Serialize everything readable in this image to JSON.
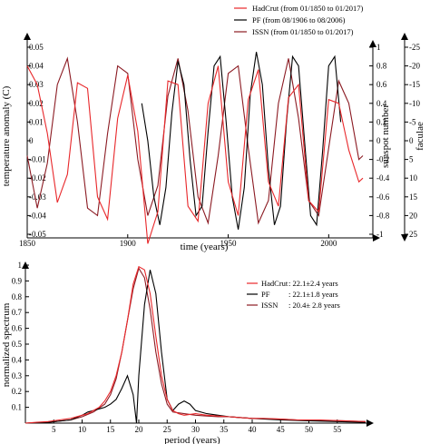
{
  "chart_data": [
    {
      "type": "line",
      "title": "",
      "xlabel": "time (years)",
      "ylabel": "temperature anomaly (C)",
      "ylabel_right1": "sunspot number",
      "ylabel_right2": "faculae",
      "xlim": [
        1850,
        2017
      ],
      "xticks": [
        1850,
        1900,
        1950,
        2000
      ],
      "ylim_left": [
        -0.05,
        0.05
      ],
      "yticks_left": [
        "0.05",
        "0.04",
        "0.03",
        "0.02",
        "0.01",
        "0",
        "-0.01",
        "-0.02",
        "-0.03",
        "-0.04",
        "-0.05"
      ],
      "ylim_right1": [
        -1,
        1
      ],
      "yticks_right1": [
        "1",
        "0.8",
        "0.6",
        "0.4",
        "0.2",
        "0",
        "-0.2",
        "-0.4",
        "-0.6",
        "-0.8",
        "-1"
      ],
      "ylim_right2": [
        -25,
        25
      ],
      "yticks_right2": [
        "-25",
        "-20",
        "-15",
        "-10",
        "-5",
        "0",
        "5",
        "10",
        "15",
        "20",
        "25"
      ],
      "legend_position": "top-right",
      "series": [
        {
          "name": "HadCrut (from 01/1850 to 01/2017)",
          "color": "#e8272a",
          "x": [
            1850,
            1855,
            1860,
            1865,
            1870,
            1875,
            1880,
            1885,
            1890,
            1895,
            1900,
            1905,
            1910,
            1915,
            1920,
            1925,
            1930,
            1935,
            1940,
            1945,
            1950,
            1955,
            1960,
            1965,
            1970,
            1975,
            1980,
            1985,
            1990,
            1995,
            2000,
            2005,
            2010,
            2015,
            2017
          ],
          "y": [
            0.04,
            0.03,
            0.004,
            -0.033,
            -0.018,
            0.031,
            0.028,
            -0.03,
            -0.042,
            0.012,
            0.035,
            0.005,
            -0.055,
            -0.038,
            0.032,
            0.03,
            -0.035,
            -0.043,
            0.02,
            0.04,
            -0.022,
            -0.04,
            0.022,
            0.038,
            -0.022,
            -0.035,
            0.023,
            0.03,
            -0.032,
            -0.038,
            0.022,
            0.02,
            -0.005,
            -0.022,
            -0.02
          ]
        },
        {
          "name": "PF (from 08/1906 to 08/2006)",
          "color": "#000000",
          "x": [
            1907,
            1910,
            1913,
            1916,
            1919,
            1922,
            1925,
            1928,
            1931,
            1934,
            1937,
            1940,
            1943,
            1946,
            1949,
            1952,
            1955,
            1958,
            1961,
            1964,
            1967,
            1970,
            1973,
            1976,
            1979,
            1982,
            1985,
            1988,
            1991,
            1994,
            1997,
            2000,
            2003,
            2006
          ],
          "y": [
            0.4,
            0.0,
            -0.6,
            -0.9,
            -0.5,
            0.3,
            0.85,
            0.6,
            -0.2,
            -0.8,
            -0.7,
            0.1,
            0.8,
            0.9,
            0.2,
            -0.6,
            -0.95,
            -0.5,
            0.5,
            0.95,
            0.6,
            -0.3,
            -0.9,
            -0.7,
            0.2,
            0.9,
            0.8,
            0.0,
            -0.8,
            -0.9,
            -0.1,
            0.8,
            0.9,
            0.2
          ]
        },
        {
          "name": "ISSN (from 01/1850 to 01/2017)",
          "color": "#8b1a22",
          "x": [
            1850,
            1855,
            1860,
            1865,
            1870,
            1875,
            1880,
            1885,
            1890,
            1895,
            1900,
            1905,
            1910,
            1915,
            1920,
            1925,
            1930,
            1935,
            1940,
            1945,
            1950,
            1955,
            1960,
            1965,
            1970,
            1975,
            1980,
            1985,
            1990,
            1995,
            2000,
            2005,
            2010,
            2015,
            2017
          ],
          "y": [
            4,
            18,
            6,
            -15,
            -22,
            -5,
            18,
            20,
            -2,
            -20,
            -18,
            5,
            20,
            12,
            -12,
            -22,
            -8,
            15,
            22,
            4,
            -18,
            -20,
            2,
            22,
            16,
            -10,
            -22,
            -6,
            16,
            20,
            2,
            -16,
            -10,
            5,
            4
          ]
        }
      ]
    },
    {
      "type": "line",
      "title": "",
      "xlabel": "period (years)",
      "ylabel": "normalized spectrum",
      "xlim": [
        0,
        60
      ],
      "xticks": [
        "5",
        "10",
        "15",
        "20",
        "25",
        "30",
        "35",
        "40",
        "45",
        "50",
        "55"
      ],
      "ylim": [
        0,
        1
      ],
      "yticks": [
        "0.1",
        "0.2",
        "0.3",
        "0.4",
        "0.5",
        "0.6",
        "0.7",
        "0.8",
        "0.9",
        "1"
      ],
      "legend_position": "center-right",
      "series": [
        {
          "name": "HadCrut",
          "annotation": ": 22.1±2.4 years",
          "color": "#e8272a",
          "x": [
            0,
            2,
            4,
            6,
            8,
            10,
            11,
            12,
            13,
            14,
            15,
            16,
            17,
            18,
            19,
            20,
            21,
            22,
            23,
            24,
            25,
            26,
            27,
            28,
            30,
            32,
            34,
            36,
            38,
            40,
            42,
            45,
            48,
            52,
            56,
            60
          ],
          "y": [
            0,
            0.005,
            0.01,
            0.02,
            0.03,
            0.05,
            0.06,
            0.08,
            0.1,
            0.14,
            0.2,
            0.3,
            0.45,
            0.65,
            0.88,
            0.99,
            0.97,
            0.82,
            0.55,
            0.3,
            0.15,
            0.08,
            0.06,
            0.05,
            0.06,
            0.05,
            0.045,
            0.04,
            0.035,
            0.03,
            0.03,
            0.025,
            0.02,
            0.02,
            0.015,
            0.01
          ]
        },
        {
          "name": "PF",
          "annotation": ": 22.1±1.8 years",
          "color": "#000000",
          "x": [
            0,
            4,
            8,
            10,
            11,
            12,
            13,
            14,
            15,
            16,
            17,
            18,
            19,
            19.6,
            20,
            21,
            22,
            23,
            24,
            25,
            26,
            27,
            28,
            29,
            30,
            32,
            34,
            36,
            38,
            40,
            45,
            50,
            55,
            60
          ],
          "y": [
            0,
            0.005,
            0.02,
            0.05,
            0.07,
            0.08,
            0.09,
            0.1,
            0.12,
            0.15,
            0.22,
            0.3,
            0.18,
            0.0,
            0.3,
            0.75,
            0.97,
            0.82,
            0.45,
            0.15,
            0.08,
            0.12,
            0.14,
            0.12,
            0.08,
            0.06,
            0.05,
            0.04,
            0.035,
            0.03,
            0.02,
            0.015,
            0.01,
            0.005
          ]
        },
        {
          "name": "ISSN",
          "annotation": ": 20.4± 2.8 years",
          "color": "#8b1a22",
          "x": [
            0,
            4,
            8,
            10,
            12,
            14,
            15,
            16,
            17,
            18,
            19,
            20,
            21,
            22,
            23,
            24,
            25,
            26,
            28,
            30,
            32,
            34,
            36,
            38,
            40,
            42,
            45,
            48,
            52,
            56,
            60
          ],
          "y": [
            0,
            0.005,
            0.02,
            0.04,
            0.07,
            0.12,
            0.18,
            0.28,
            0.45,
            0.65,
            0.85,
            0.98,
            0.92,
            0.72,
            0.45,
            0.25,
            0.12,
            0.07,
            0.06,
            0.05,
            0.045,
            0.04,
            0.04,
            0.035,
            0.03,
            0.028,
            0.025,
            0.02,
            0.018,
            0.015,
            0.01
          ]
        }
      ]
    }
  ]
}
